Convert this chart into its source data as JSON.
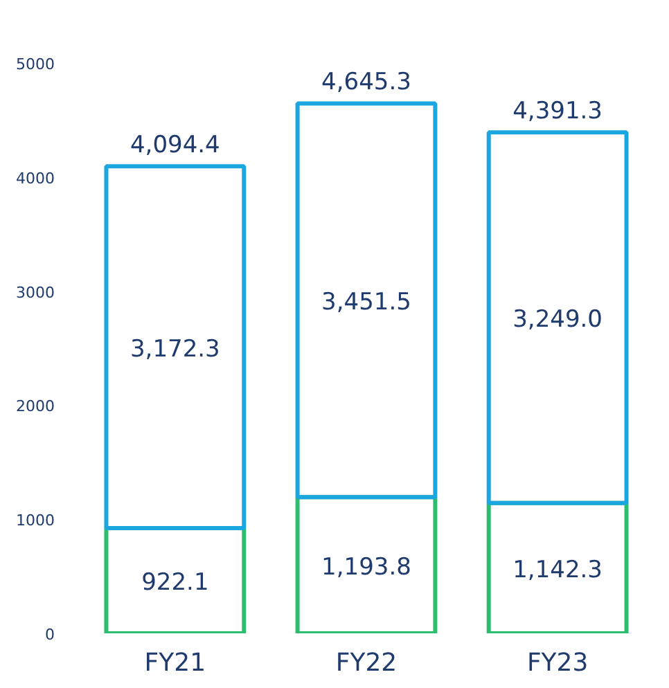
{
  "chart_data": {
    "type": "bar",
    "stacked": true,
    "categories": [
      "FY21",
      "FY22",
      "FY23"
    ],
    "series": [
      {
        "color": "#2dbd6e",
        "values": [
          922.1,
          1193.8,
          1142.3
        ],
        "value_labels": [
          "922.1",
          "1,193.8",
          "1,142.3"
        ]
      },
      {
        "color": "#1ba6e0",
        "values": [
          3172.3,
          3451.5,
          3249.0
        ],
        "value_labels": [
          "3,172.3",
          "3,451.5",
          "3,249.0"
        ]
      }
    ],
    "totals": [
      "4,094.4",
      "4,645.3",
      "4,391.3"
    ],
    "ylim": [
      0,
      5000
    ],
    "yticks": [
      0,
      1000,
      2000,
      3000,
      4000,
      5000
    ],
    "grid": false
  }
}
